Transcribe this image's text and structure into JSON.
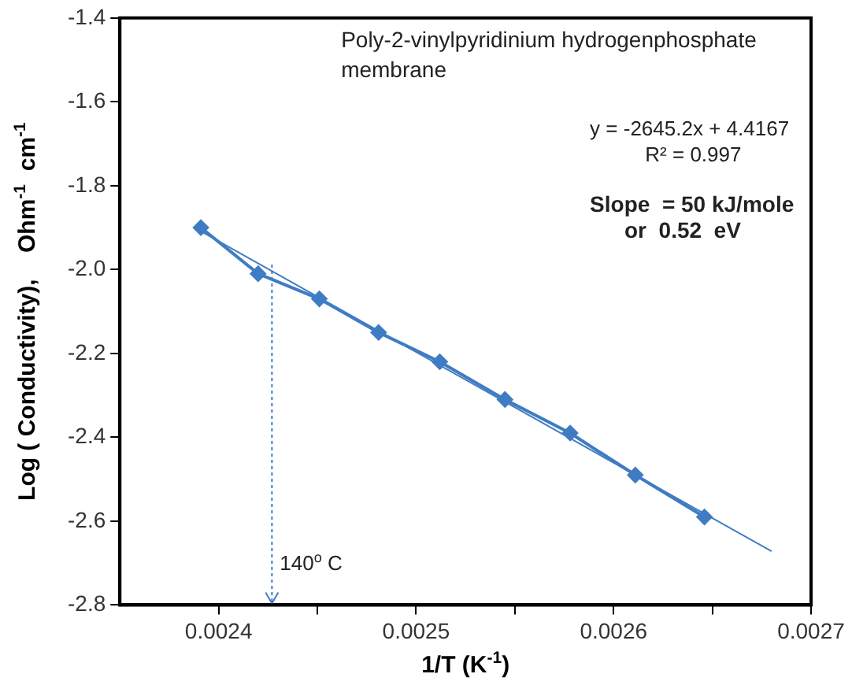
{
  "chart_data": {
    "type": "line",
    "xlabel": "1/T (K$^{-1}$)",
    "ylabel": "Log ( Conductivity),    Ohm$^{-1}$  cm$^{-1}$",
    "xlim": [
      0.00235,
      0.0027
    ],
    "xticks": [
      0.0024,
      {
        "value": 0.00245,
        "label": null
      },
      0.0025,
      {
        "value": 0.00255,
        "label": null
      },
      0.0026,
      {
        "value": 0.00265,
        "label": null
      },
      0.0027
    ],
    "ylim": [
      -2.8,
      -1.4
    ],
    "yticks": [
      {
        "value": -2.8,
        "label": "-2.8"
      },
      {
        "value": -2.6,
        "label": "-2.6"
      },
      {
        "value": -2.4,
        "label": "-2.4"
      },
      {
        "value": -2.2,
        "label": "-2.2"
      },
      {
        "value": -2,
        "label": "-2.0"
      },
      {
        "value": -1.8,
        "label": "-1.8"
      },
      {
        "value": -1.6,
        "label": "-1.6"
      },
      {
        "value": -1.4,
        "label": "-1.4"
      }
    ],
    "grid": false,
    "legend": false,
    "series": [
      {
        "type": "line",
        "color": "#3f7cc4",
        "marker": "diamond",
        "x": [
          0.002391,
          0.00242,
          0.002451,
          0.002481,
          0.002512,
          0.002545,
          0.002578,
          0.002611,
          0.002646
        ],
        "values": [
          -1.9,
          -2.01,
          -2.07,
          -2.15,
          -2.22,
          -2.31,
          -2.39,
          -2.49,
          -2.59
        ]
      },
      {
        "type": "line",
        "color": "#3f7cc4",
        "marker": "none",
        "x": [
          0.00239,
          0.00268
        ],
        "values": [
          -1.906,
          -2.672
        ]
      }
    ],
    "ref_lines": [
      {
        "axis": "x",
        "value": 0.002427,
        "label": "140$^{o}$ C",
        "color": "#3f7cc4",
        "line_style": "dotted"
      }
    ],
    "annotations": [
      "Poly-2-vinylpyridinium hydrogenphosphate\nmembrane",
      "y = -2645.2x + 4.4167",
      "R² = 0.997",
      "Slope  = 50 kJ/mole",
      "or  0.52  eV"
    ]
  }
}
